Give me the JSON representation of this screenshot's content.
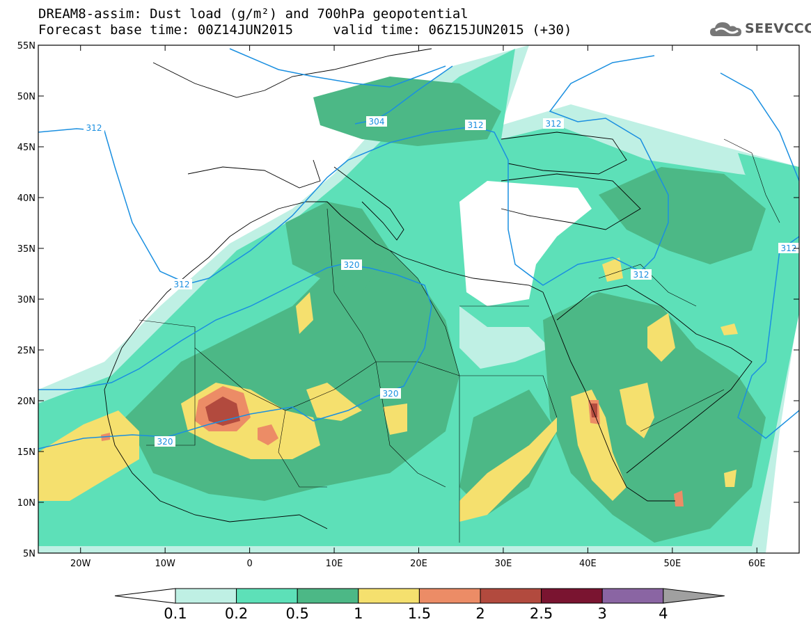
{
  "title_line1": "DREAM8-assim: Dust load (g/m²) and 700hPa geopotential",
  "title_line2": "Forecast base time: 00Z14JUN2015     valid time: 06Z15JUN2015 (+30)",
  "logo_text": "SEEVCCC",
  "logo_icon": "cloud-icon",
  "map": {
    "lon_range": [
      -25,
      65
    ],
    "lat_range": [
      5,
      55
    ],
    "lat_ticks": [
      "55N",
      "50N",
      "45N",
      "40N",
      "35N",
      "30N",
      "25N",
      "20N",
      "15N",
      "10N",
      "5N"
    ],
    "lon_ticks": [
      "20W",
      "10W",
      "0",
      "10E",
      "20E",
      "30E",
      "40E",
      "50E",
      "60E"
    ],
    "contour_labels": [
      "312",
      "304",
      "312",
      "312",
      "312",
      "320",
      "320",
      "320",
      "312",
      "312"
    ],
    "contour_color": "#1a8fe0"
  },
  "colorbar": {
    "labels": [
      "0.1",
      "0.2",
      "0.5",
      "1",
      "1.5",
      "2",
      "2.5",
      "3",
      "4"
    ],
    "colors": [
      "#bff0e4",
      "#5de0b8",
      "#4cb886",
      "#f5e06e",
      "#ec8c66",
      "#b24a3e",
      "#7a1430",
      "#8a65a3"
    ],
    "under_color": "#ffffff",
    "over_color": "#a0a0a0"
  }
}
